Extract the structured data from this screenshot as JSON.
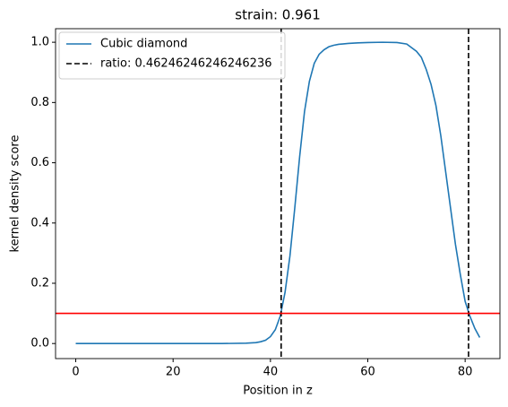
{
  "chart_data": {
    "type": "line",
    "title": "strain: 0.961",
    "xlabel": "Position in z",
    "ylabel": "kernel density score",
    "x": [
      0,
      10,
      20,
      30,
      35,
      37,
      38,
      39,
      40,
      41,
      42,
      43,
      44,
      45,
      46,
      47,
      48,
      49,
      50,
      51,
      52,
      53,
      54,
      56,
      58,
      60,
      63,
      66,
      68,
      70,
      71,
      72,
      73,
      74,
      75,
      76,
      77,
      78,
      79,
      80,
      81,
      82,
      83
    ],
    "series": [
      {
        "name": "Cubic diamond",
        "color": "#1f77b4",
        "values": [
          0,
          0,
          0,
          0,
          0.001,
          0.003,
          0.006,
          0.011,
          0.023,
          0.046,
          0.09,
          0.17,
          0.29,
          0.45,
          0.62,
          0.77,
          0.87,
          0.93,
          0.96,
          0.975,
          0.985,
          0.99,
          0.993,
          0.996,
          0.998,
          0.999,
          1.0,
          0.999,
          0.994,
          0.97,
          0.95,
          0.91,
          0.86,
          0.79,
          0.69,
          0.57,
          0.45,
          0.33,
          0.23,
          0.14,
          0.09,
          0.05,
          0.02
        ]
      }
    ],
    "vlines": {
      "name": "ratio: 0.46246246246246236",
      "color": "#000000",
      "x": [
        42.2,
        80.7
      ]
    },
    "hline": {
      "y": 0.1,
      "color": "#ff0000"
    },
    "xlim": [
      -4.15,
      87.15
    ],
    "ylim": [
      -0.05,
      1.045
    ],
    "xticks": [
      0,
      20,
      40,
      60,
      80
    ],
    "yticks": [
      {
        "value": 0,
        "label": "0.0"
      },
      {
        "value": 0.2,
        "label": "0.2"
      },
      {
        "value": 0.4,
        "label": "0.4"
      },
      {
        "value": 0.6,
        "label": "0.6"
      },
      {
        "value": 0.8,
        "label": "0.8"
      },
      {
        "value": 1,
        "label": "1.0"
      }
    ],
    "legend": "upper left"
  }
}
